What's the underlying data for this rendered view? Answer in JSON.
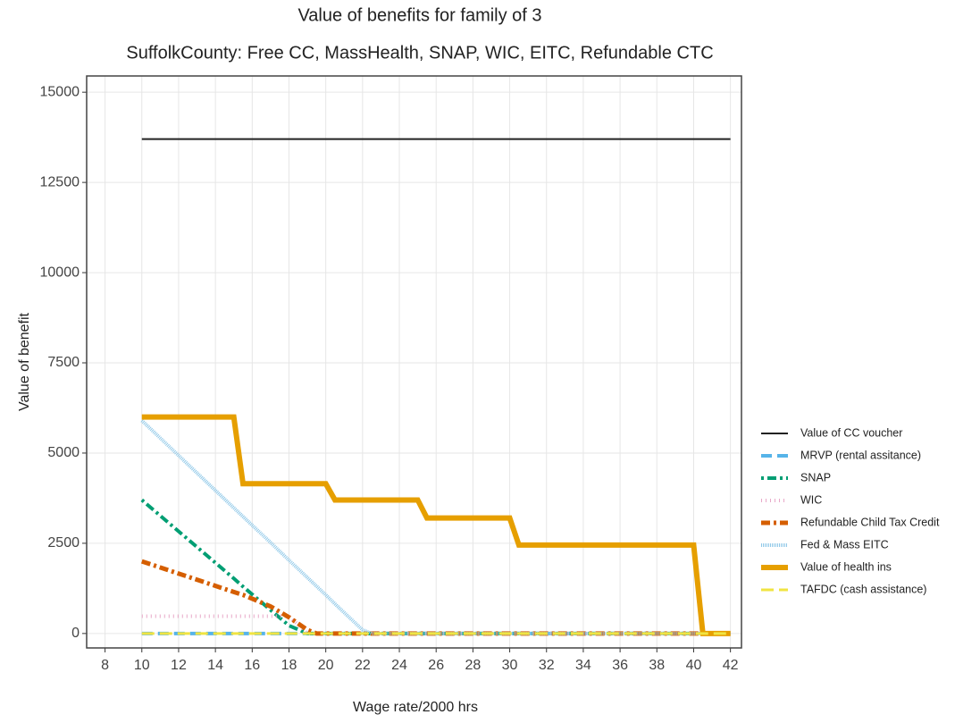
{
  "chart_data": {
    "type": "line",
    "title": "Value of benefits for family of 3",
    "subtitle": "SuffolkCounty: Free CC, MassHealth, SNAP, WIC, EITC, Refundable CTC",
    "x_label": "Wage rate/2000 hrs",
    "y_label": "Value of benefit",
    "x": [
      10,
      15,
      15.5,
      17,
      18,
      19,
      19.5,
      20,
      20.5,
      22,
      22.5,
      25,
      25.5,
      30,
      30.5,
      40,
      40.5,
      42
    ],
    "series": [
      {
        "name": "Value of CC voucher",
        "color": "#222222",
        "dash": "",
        "width": 2,
        "values": [
          13700,
          13700,
          13700,
          13700,
          13700,
          13700,
          13700,
          13700,
          13700,
          13700,
          13700,
          13700,
          13700,
          13700,
          13700,
          13700,
          13700,
          13700
        ]
      },
      {
        "name": "MRVP (rental assitance)",
        "color": "#56B4E9",
        "dash": "12 6",
        "width": 4,
        "values": [
          0,
          0,
          0,
          0,
          0,
          0,
          0,
          0,
          0,
          0,
          0,
          0,
          0,
          0,
          0,
          0,
          0,
          0
        ]
      },
      {
        "name": "SNAP",
        "color": "#009E73",
        "dash": "3 4 10 4",
        "width": 4,
        "values": [
          3700,
          1525,
          1300,
          650,
          220,
          0,
          0,
          0,
          0,
          0,
          0,
          0,
          0,
          0,
          0,
          0,
          0,
          0
        ]
      },
      {
        "name": "WIC",
        "color": "#E8A8C8",
        "dash": "1 4",
        "width": 4,
        "values": [
          480,
          480,
          480,
          480,
          480,
          0,
          0,
          0,
          0,
          0,
          0,
          0,
          0,
          0,
          0,
          0,
          0,
          0
        ]
      },
      {
        "name": "Refundable Child Tax Credit",
        "color": "#D55E00",
        "dash": "10 4 3 4",
        "width": 5,
        "values": [
          2000,
          1150,
          1070,
          750,
          450,
          100,
          0,
          0,
          0,
          0,
          0,
          0,
          0,
          0,
          0,
          0,
          0,
          0
        ]
      },
      {
        "name": "Fed & Mass EITC",
        "color": "#8FC8E8",
        "dash": "1 1",
        "width": 4,
        "values": [
          5900,
          3480,
          3240,
          2520,
          2030,
          1550,
          1310,
          1070,
          820,
          100,
          0,
          0,
          0,
          0,
          0,
          0,
          0,
          0
        ]
      },
      {
        "name": "Value of health ins",
        "color": "#E69F00",
        "dash": "",
        "width": 6,
        "values": [
          6000,
          6000,
          4150,
          4150,
          4150,
          4150,
          4150,
          4150,
          3700,
          3700,
          3700,
          3700,
          3200,
          3200,
          2450,
          2450,
          0,
          0
        ]
      },
      {
        "name": "TAFDC (cash assistance)",
        "color": "#F0E442",
        "dash": "14 6",
        "width": 3,
        "values": [
          0,
          0,
          0,
          0,
          0,
          0,
          0,
          0,
          0,
          0,
          0,
          0,
          0,
          0,
          0,
          0,
          0,
          0
        ]
      }
    ],
    "xlim": [
      7,
      42.6
    ],
    "ylim": [
      -400,
      15450
    ],
    "xticks": [
      8,
      10,
      12,
      14,
      16,
      18,
      20,
      22,
      24,
      26,
      28,
      30,
      32,
      34,
      36,
      38,
      40,
      42
    ],
    "yticks": [
      0,
      2500,
      5000,
      7500,
      10000,
      12500,
      15000
    ],
    "grid": true,
    "legend": "right"
  }
}
